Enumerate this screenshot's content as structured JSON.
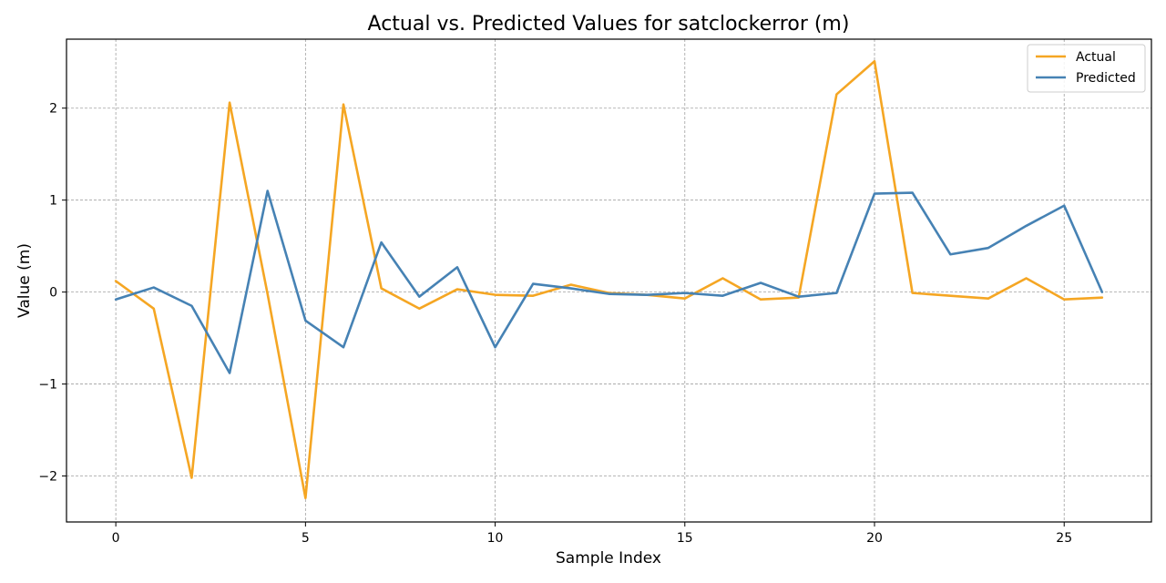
{
  "chart_data": {
    "type": "line",
    "title": "Actual vs. Predicted Values for satclockerror (m)",
    "xlabel": "Sample Index",
    "ylabel": "Value (m)",
    "xlim": [
      -1.3,
      27.3
    ],
    "ylim": [
      -2.5,
      2.75
    ],
    "xticks": [
      0,
      5,
      10,
      15,
      20,
      25
    ],
    "yticks": [
      -2,
      -1,
      0,
      1,
      2
    ],
    "ytick_labels": [
      "−2",
      "−1",
      "0",
      "1",
      "2"
    ],
    "grid": true,
    "legend_position": "top-right",
    "x": [
      0,
      1,
      2,
      3,
      4,
      5,
      6,
      7,
      8,
      9,
      10,
      11,
      12,
      13,
      14,
      15,
      16,
      17,
      18,
      19,
      20,
      21,
      22,
      23,
      24,
      25,
      26
    ],
    "series": [
      {
        "name": "Actual",
        "color": "#f5a623",
        "values": [
          0.12,
          -0.18,
          -2.02,
          2.06,
          -0.02,
          -2.24,
          2.04,
          0.04,
          -0.18,
          0.03,
          -0.03,
          -0.04,
          0.08,
          -0.01,
          -0.03,
          -0.07,
          0.15,
          -0.08,
          -0.06,
          2.15,
          2.51,
          -0.01,
          -0.04,
          -0.07,
          0.15,
          -0.08,
          -0.06
        ]
      },
      {
        "name": "Predicted",
        "color": "#4682b4",
        "values": [
          -0.08,
          0.05,
          -0.15,
          -0.88,
          1.1,
          -0.31,
          -0.6,
          0.54,
          -0.05,
          0.27,
          -0.6,
          0.09,
          0.04,
          -0.02,
          -0.03,
          -0.01,
          -0.04,
          0.1,
          -0.05,
          -0.01,
          1.07,
          1.08,
          0.41,
          0.48,
          0.72,
          0.94,
          0.0
        ]
      }
    ]
  }
}
